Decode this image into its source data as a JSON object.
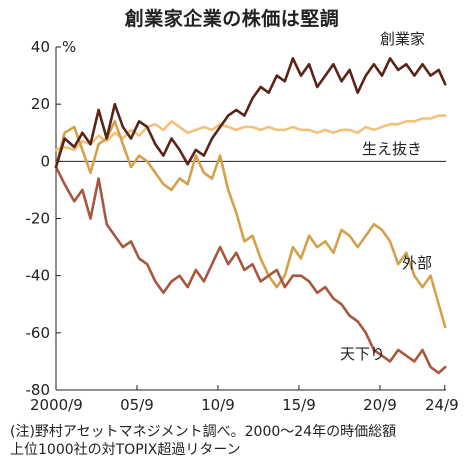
{
  "title": "創業家企業の株価は堅調",
  "note": [
    "(注)野村アセットマネジメント調べ。2000～24年の時価総額",
    "上位1000社の対TOPIX超過リターン"
  ],
  "chart_data": {
    "type": "line",
    "title": "創業家企業の株価は堅調",
    "ylabel": "%",
    "ylim": [
      -80,
      40
    ],
    "yticks": [
      40,
      20,
      0,
      -20,
      -40,
      -60,
      -80
    ],
    "xlim": [
      2000.67,
      2024.75
    ],
    "xticks": [
      {
        "label": "2000/9",
        "x": 2000.67
      },
      {
        "label": "05/9",
        "x": 2005.67
      },
      {
        "label": "10/9",
        "x": 2010.67
      },
      {
        "label": "15/9",
        "x": 2015.67
      },
      {
        "label": "20/9",
        "x": 2020.67
      },
      {
        "label": "24/9",
        "x": 2024.67
      }
    ],
    "grid": false,
    "series": [
      {
        "name": "創業家",
        "color": "#5a2418",
        "x": [
          2000.67,
          2001.2,
          2001.8,
          2002.3,
          2002.8,
          2003.3,
          2003.8,
          2004.3,
          2004.8,
          2005.3,
          2005.8,
          2006.3,
          2006.8,
          2007.3,
          2007.8,
          2008.3,
          2008.8,
          2009.3,
          2009.8,
          2010.3,
          2010.8,
          2011.3,
          2011.8,
          2012.3,
          2012.8,
          2013.3,
          2013.8,
          2014.3,
          2014.8,
          2015.3,
          2015.8,
          2016.3,
          2016.8,
          2017.3,
          2017.8,
          2018.3,
          2018.8,
          2019.3,
          2019.8,
          2020.3,
          2020.8,
          2021.3,
          2021.8,
          2022.3,
          2022.8,
          2023.3,
          2023.8,
          2024.3,
          2024.7
        ],
        "y": [
          -2,
          8,
          5,
          10,
          6,
          18,
          8,
          20,
          12,
          8,
          14,
          12,
          6,
          2,
          8,
          4,
          -1,
          4,
          2,
          8,
          12,
          16,
          18,
          16,
          22,
          26,
          24,
          30,
          28,
          36,
          30,
          34,
          26,
          30,
          34,
          28,
          32,
          24,
          30,
          34,
          30,
          36,
          32,
          34,
          30,
          34,
          30,
          32,
          27
        ]
      },
      {
        "name": "生え抜き",
        "color": "#f2c27a",
        "x": [
          2000.67,
          2001.2,
          2001.8,
          2002.3,
          2002.8,
          2003.3,
          2003.8,
          2004.3,
          2004.8,
          2005.3,
          2005.8,
          2006.3,
          2006.8,
          2007.3,
          2007.8,
          2008.3,
          2008.8,
          2009.3,
          2009.8,
          2010.3,
          2010.8,
          2011.3,
          2011.8,
          2012.3,
          2012.8,
          2013.3,
          2013.8,
          2014.3,
          2014.8,
          2015.3,
          2015.8,
          2016.3,
          2016.8,
          2017.3,
          2017.8,
          2018.3,
          2018.8,
          2019.3,
          2019.8,
          2020.3,
          2020.8,
          2021.3,
          2021.8,
          2022.3,
          2022.8,
          2023.3,
          2023.8,
          2024.3,
          2024.7
        ],
        "y": [
          4,
          5,
          4,
          7,
          6,
          9,
          7,
          10,
          8,
          11,
          9,
          12,
          13,
          11,
          14,
          12,
          10,
          11,
          12,
          11,
          13,
          12,
          11,
          12,
          12,
          11,
          12,
          11,
          11,
          12,
          11,
          11,
          10,
          11,
          10,
          11,
          11,
          10,
          12,
          11,
          12,
          13,
          13,
          14,
          14,
          15,
          15,
          16,
          16
        ]
      },
      {
        "name": "外部",
        "color": "#d4a04a",
        "x": [
          2000.67,
          2001.2,
          2001.8,
          2002.3,
          2002.8,
          2003.3,
          2003.8,
          2004.3,
          2004.8,
          2005.3,
          2005.8,
          2006.3,
          2006.8,
          2007.3,
          2007.8,
          2008.3,
          2008.8,
          2009.3,
          2009.8,
          2010.3,
          2010.8,
          2011.3,
          2011.8,
          2012.3,
          2012.8,
          2013.3,
          2013.8,
          2014.3,
          2014.8,
          2015.3,
          2015.8,
          2016.3,
          2016.8,
          2017.3,
          2017.8,
          2018.3,
          2018.8,
          2019.3,
          2019.8,
          2020.3,
          2020.8,
          2021.3,
          2021.8,
          2022.3,
          2022.8,
          2023.3,
          2023.8,
          2024.3,
          2024.7
        ],
        "y": [
          -2,
          10,
          12,
          4,
          -4,
          6,
          8,
          14,
          6,
          -2,
          2,
          0,
          -4,
          -8,
          -10,
          -6,
          -8,
          2,
          -4,
          -6,
          2,
          -10,
          -18,
          -28,
          -26,
          -34,
          -40,
          -44,
          -40,
          -30,
          -34,
          -26,
          -30,
          -28,
          -32,
          -24,
          -26,
          -30,
          -26,
          -22,
          -24,
          -28,
          -36,
          -32,
          -40,
          -44,
          -40,
          -50,
          -58
        ]
      },
      {
        "name": "天下り",
        "color": "#a8573f",
        "x": [
          2000.67,
          2001.2,
          2001.8,
          2002.3,
          2002.8,
          2003.3,
          2003.8,
          2004.3,
          2004.8,
          2005.3,
          2005.8,
          2006.3,
          2006.8,
          2007.3,
          2007.8,
          2008.3,
          2008.8,
          2009.3,
          2009.8,
          2010.3,
          2010.8,
          2011.3,
          2011.8,
          2012.3,
          2012.8,
          2013.3,
          2013.8,
          2014.3,
          2014.8,
          2015.3,
          2015.8,
          2016.3,
          2016.8,
          2017.3,
          2017.8,
          2018.3,
          2018.8,
          2019.3,
          2019.8,
          2020.3,
          2020.8,
          2021.3,
          2021.8,
          2022.3,
          2022.8,
          2023.3,
          2023.8,
          2024.3,
          2024.7
        ],
        "y": [
          -2,
          -8,
          -14,
          -10,
          -20,
          -6,
          -22,
          -26,
          -30,
          -28,
          -34,
          -36,
          -42,
          -46,
          -42,
          -40,
          -44,
          -38,
          -42,
          -36,
          -30,
          -36,
          -32,
          -38,
          -36,
          -42,
          -40,
          -38,
          -44,
          -40,
          -40,
          -42,
          -46,
          -44,
          -48,
          -50,
          -54,
          -56,
          -60,
          -66,
          -68,
          -70,
          -66,
          -68,
          -70,
          -66,
          -72,
          -74,
          -72
        ]
      }
    ],
    "annotations": [
      {
        "text": "創業家",
        "series": "創業家"
      },
      {
        "text": "生え抜き",
        "series": "生え抜き"
      },
      {
        "text": "外部",
        "series": "外部"
      },
      {
        "text": "天下り",
        "series": "天下り"
      }
    ]
  }
}
